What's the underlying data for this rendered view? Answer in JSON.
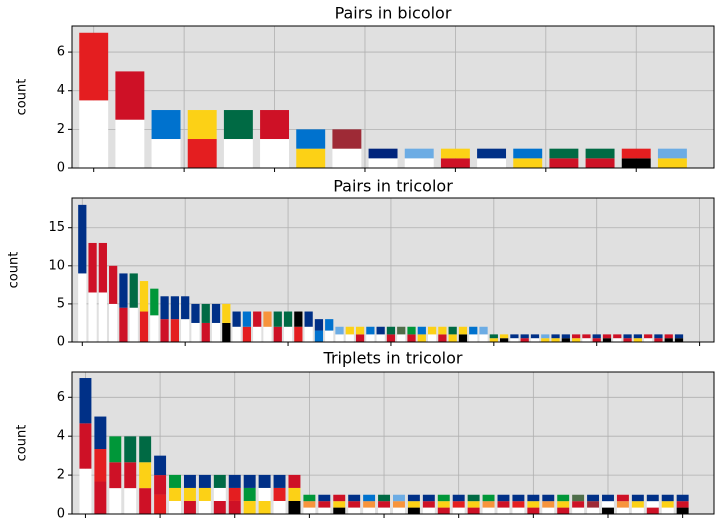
{
  "chart_data": [
    {
      "type": "bar",
      "stacked": true,
      "title": "Pairs in bicolor",
      "y_label": "count",
      "grid": true,
      "xlim": [
        -0.6,
        17.15
      ],
      "xticks": [
        0,
        2.5,
        5,
        7.5,
        10,
        12.5,
        15
      ],
      "ylim": [
        0,
        7.35
      ],
      "yticks": [
        0,
        2,
        4,
        6
      ],
      "series": [
        {
          "values": [
            3.5,
            2.5,
            1.5,
            1.5,
            1.5,
            1.5,
            1,
            1,
            0.5,
            0.5,
            0.5,
            0.5,
            0.5,
            0.5,
            0.5,
            0.5,
            0.5
          ],
          "colors": [
            "#ffffff",
            "#ffffff",
            "#ffffff",
            "#e41e20",
            "#ffffff",
            "#ffffff",
            "#fcd116",
            "#ffffff",
            "#ffffff",
            "#ffffff",
            "#ce1126",
            "#ffffff",
            "#fcd116",
            "#ce1126",
            "#ce1126",
            "#000000",
            "#fcd116"
          ]
        },
        {
          "values": [
            3.5,
            2.5,
            1.5,
            1.5,
            1.5,
            1.5,
            1,
            1,
            0.5,
            0.5,
            0.5,
            0.5,
            0.5,
            0.5,
            0.5,
            0.5,
            0.5
          ],
          "colors": [
            "#e41e20",
            "#ce1126",
            "#0072ce",
            "#fcd116",
            "#006a44",
            "#ce1126",
            "#0072ce",
            "#9e2a36",
            "#00247d",
            "#6cace4",
            "#fcd116",
            "#003087",
            "#0072ce",
            "#006a44",
            "#006a44",
            "#e41e20",
            "#6cace4"
          ]
        }
      ]
    },
    {
      "type": "bar",
      "stacked": true,
      "title": "Pairs in tricolor",
      "y_label": "count",
      "grid": true,
      "xlim": [
        -1,
        61.4
      ],
      "xticks": [
        0,
        10,
        20,
        30,
        40,
        50,
        60
      ],
      "ylim": [
        0,
        18.9
      ],
      "yticks": [
        0,
        5,
        10,
        15
      ],
      "series": [
        {
          "values": [
            9,
            6.5,
            6.5,
            5,
            4.5,
            4.5,
            4,
            3.5,
            3,
            3,
            3,
            2.5,
            2.5,
            2.5,
            2.5,
            2,
            2,
            2,
            2,
            2,
            2,
            2,
            2,
            1.5,
            1.5,
            1,
            1,
            1,
            1,
            1,
            1,
            1,
            1,
            1,
            1,
            1,
            1,
            1,
            1,
            1,
            0.5,
            0.5,
            0.5,
            0.5,
            0.5,
            0.5,
            0.5,
            0.5,
            0.5,
            0.5,
            0.5,
            0.5,
            0.5,
            0.5,
            0.5,
            0.5,
            0.5,
            0.5,
            0.5
          ],
          "colors": [
            "#ffffff",
            "#ffffff",
            "#ffffff",
            "#ffffff",
            "#ce1126",
            "#ffffff",
            "#e41e20",
            "#ffffff",
            "#ce1126",
            "#e41e20",
            "#ffffff",
            "#ffffff",
            "#ce1126",
            "#ffffff",
            "#000000",
            "#ffffff",
            "#e41e20",
            "#ffffff",
            "#ffffff",
            "#ce1126",
            "#ffffff",
            "#e41e20",
            "#ffffff",
            "#0072ce",
            "#ffffff",
            "#ffffff",
            "#ffffff",
            "#ce1126",
            "#ffffff",
            "#ffffff",
            "#ce1126",
            "#ffffff",
            "#ce1126",
            "#fcd116",
            "#ffffff",
            "#ce1126",
            "#fcd116",
            "#000000",
            "#ffffff",
            "#ffffff",
            "#fcd116",
            "#000000",
            "#ffffff",
            "#ce1126",
            "#ffffff",
            "#fcd116",
            "#fcd116",
            "#000000",
            "#fcd116",
            "#ffffff",
            "#ce1126",
            "#000000",
            "#ffffff",
            "#ce1126",
            "#fcd116",
            "#ffffff",
            "#ce1126",
            "#000000",
            "#000000"
          ]
        },
        {
          "values": [
            9,
            6.5,
            6.5,
            5,
            4.5,
            4.5,
            4,
            3.5,
            3,
            3,
            3,
            2.5,
            2.5,
            2.5,
            2.5,
            2,
            2,
            2,
            2,
            2,
            2,
            2,
            2,
            1.5,
            1.5,
            1,
            1,
            1,
            1,
            1,
            1,
            1,
            1,
            1,
            1,
            1,
            1,
            1,
            1,
            1,
            0.5,
            0.5,
            0.5,
            0.5,
            0.5,
            0.5,
            0.5,
            0.5,
            0.5,
            0.5,
            0.5,
            0.5,
            0.5,
            0.5,
            0.5,
            0.5,
            0.5,
            0.5,
            0.5
          ],
          "colors": [
            "#003087",
            "#ce1126",
            "#ce1126",
            "#ce1126",
            "#003087",
            "#006a44",
            "#fcd116",
            "#009739",
            "#003087",
            "#003087",
            "#003087",
            "#003087",
            "#006a44",
            "#003087",
            "#fcd116",
            "#003087",
            "#0072ce",
            "#ce1126",
            "#f7943c",
            "#006a44",
            "#006a44",
            "#000000",
            "#003087",
            "#003087",
            "#0072ce",
            "#6cace4",
            "#fcd116",
            "#fcd116",
            "#0072ce",
            "#003087",
            "#006a44",
            "#4f6e4a",
            "#009739",
            "#0072ce",
            "#fcd116",
            "#fcd116",
            "#006a44",
            "#fcd116",
            "#0072ce",
            "#6cace4",
            "#006a44",
            "#fcd116",
            "#003087",
            "#003087",
            "#003087",
            "#6cace4",
            "#003087",
            "#003087",
            "#ce1126",
            "#ce1126",
            "#003087",
            "#ce1126",
            "#ce1126",
            "#003087",
            "#003087",
            "#ce1126",
            "#003087",
            "#ce1126",
            "#003087"
          ]
        }
      ]
    },
    {
      "type": "bar",
      "stacked": true,
      "title": "Triplets in tricolor",
      "y_label": "count",
      "grid": true,
      "xlim": [
        -0.9,
        42.1
      ],
      "xticks": [
        0,
        5,
        10,
        15,
        20,
        25,
        30,
        35,
        40
      ],
      "ylim": [
        0,
        7.3
      ],
      "yticks": [
        0,
        2,
        4,
        6
      ],
      "series": [
        {
          "values": [
            2.33,
            1.67,
            1.33,
            1.33,
            1.33,
            1,
            0.67,
            0.67,
            0.67,
            0.67,
            0.67,
            0.67,
            0.67,
            0.67,
            0.67,
            0.33,
            0.33,
            0.33,
            0.33,
            0.33,
            0.33,
            0.33,
            0.33,
            0.33,
            0.33,
            0.33,
            0.33,
            0.33,
            0.33,
            0.33,
            0.33,
            0.33,
            0.33,
            0.33,
            0.33,
            0.33,
            0.33,
            0.33,
            0.33,
            0.33,
            0.33
          ],
          "colors": [
            "#ffffff",
            "#ce1126",
            "#ffffff",
            "#ffffff",
            "#ce1126",
            "#e41e20",
            "#ffffff",
            "#ce1126",
            "#ffffff",
            "#ce1126",
            "#ce1126",
            "#fcd116",
            "#fcd116",
            "#ffffff",
            "#000000",
            "#ffffff",
            "#ffffff",
            "#000000",
            "#ffffff",
            "#ffffff",
            "#ffffff",
            "#ffffff",
            "#000000",
            "#ffffff",
            "#ce1126",
            "#ffffff",
            "#ce1126",
            "#ffffff",
            "#ffffff",
            "#ffffff",
            "#ce1126",
            "#ffffff",
            "#ce1126",
            "#ffffff",
            "#ffffff",
            "#000000",
            "#ffffff",
            "#ffffff",
            "#ce1126",
            "#ffffff",
            "#000000"
          ]
        },
        {
          "values": [
            2.33,
            1.67,
            1.33,
            1.33,
            1.33,
            1,
            0.67,
            0.67,
            0.67,
            0.67,
            0.67,
            0.67,
            0.67,
            0.67,
            0.67,
            0.33,
            0.33,
            0.33,
            0.33,
            0.33,
            0.33,
            0.33,
            0.33,
            0.33,
            0.33,
            0.33,
            0.33,
            0.33,
            0.33,
            0.33,
            0.33,
            0.33,
            0.33,
            0.33,
            0.33,
            0.33,
            0.33,
            0.33,
            0.33,
            0.33,
            0.33
          ],
          "colors": [
            "#ce1126",
            "#e41e20",
            "#ce1126",
            "#ce1126",
            "#fcd116",
            "#ce1126",
            "#fcd116",
            "#fcd116",
            "#fcd116",
            "#ffffff",
            "#e41e20",
            "#009739",
            "#ffffff",
            "#e41e20",
            "#fcd116",
            "#f7943c",
            "#ce1126",
            "#fcd116",
            "#ce1126",
            "#f7943c",
            "#ce1126",
            "#f7943c",
            "#fcd116",
            "#ce1126",
            "#fcd116",
            "#e41e20",
            "#fcd116",
            "#f7943c",
            "#ce1126",
            "#e41e20",
            "#fcd116",
            "#f7943c",
            "#fcd116",
            "#ce1126",
            "#9e2a36",
            "#ffffff",
            "#f7943c",
            "#fcd116",
            "#ffffff",
            "#fcd116",
            "#ce1126"
          ]
        },
        {
          "values": [
            2.33,
            1.67,
            1.33,
            1.33,
            1.33,
            1,
            0.67,
            0.67,
            0.67,
            0.67,
            0.67,
            0.67,
            0.67,
            0.67,
            0.67,
            0.33,
            0.33,
            0.33,
            0.33,
            0.33,
            0.33,
            0.33,
            0.33,
            0.33,
            0.33,
            0.33,
            0.33,
            0.33,
            0.33,
            0.33,
            0.33,
            0.33,
            0.33,
            0.33,
            0.33,
            0.33,
            0.33,
            0.33,
            0.33,
            0.33,
            0.33
          ],
          "colors": [
            "#003087",
            "#003087",
            "#009739",
            "#006a44",
            "#006a44",
            "#003087",
            "#009739",
            "#003087",
            "#003087",
            "#006a44",
            "#003087",
            "#003087",
            "#003087",
            "#003087",
            "#ce1126",
            "#009739",
            "#003087",
            "#ce1126",
            "#003087",
            "#0072ce",
            "#006a44",
            "#6cace4",
            "#003087",
            "#003087",
            "#009739",
            "#003087",
            "#006a44",
            "#009739",
            "#003087",
            "#003087",
            "#003087",
            "#003087",
            "#009739",
            "#4f6e4a",
            "#003087",
            "#003087",
            "#ce1126",
            "#003087",
            "#003087",
            "#003087",
            "#003087"
          ]
        }
      ]
    }
  ]
}
